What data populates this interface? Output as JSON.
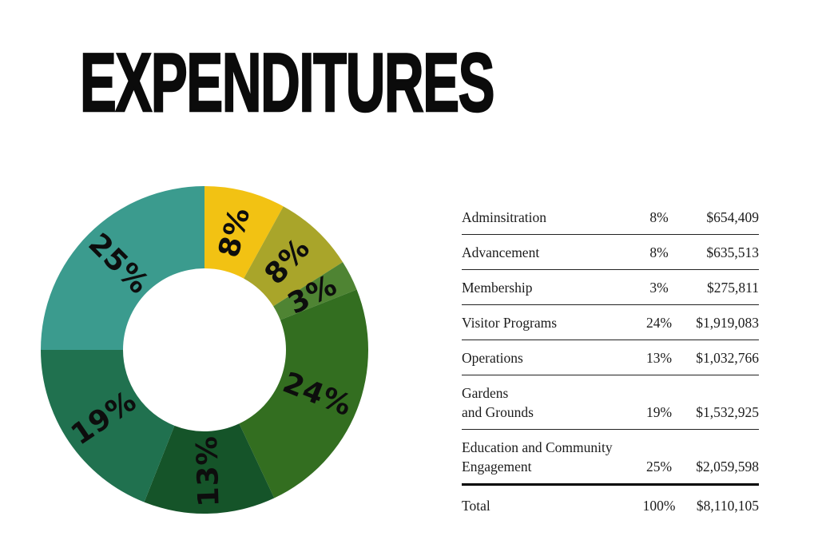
{
  "page": {
    "title": "EXPENDITURES"
  },
  "chart_data": {
    "type": "pie",
    "subtype": "donut",
    "title": "EXPENDITURES",
    "start_angle_deg": 0,
    "direction": "clockwise",
    "legend_position": "none",
    "categories": [
      "Adminsitration",
      "Advancement",
      "Membership",
      "Visitor Programs",
      "Operations",
      "Gardens and Grounds",
      "Education and Community Engagement"
    ],
    "values": [
      8,
      8,
      3,
      24,
      13,
      19,
      25
    ],
    "slice_labels": [
      "8%",
      "8%",
      "3%",
      "24%",
      "13%",
      "19%",
      "25%"
    ],
    "amounts": [
      "$654,409",
      "$635,513",
      "$275,811",
      "$1,919,083",
      "$1,032,766",
      "$1,532,925",
      "$2,059,598"
    ],
    "colors": [
      "#F2C213",
      "#A9A52A",
      "#4F8433",
      "#336E20",
      "#155429",
      "#20714F",
      "#3B9B8E"
    ],
    "total": {
      "label": "Total",
      "pct": "100%",
      "amount": "$8,110,105"
    }
  },
  "table": {
    "rows": [
      {
        "label": "Adminsitration",
        "pct": "8%",
        "amount": "$654,409"
      },
      {
        "label": "Advancement",
        "pct": "8%",
        "amount": "$635,513"
      },
      {
        "label": "Membership",
        "pct": "3%",
        "amount": "$275,811"
      },
      {
        "label": "Visitor Programs",
        "pct": "24%",
        "amount": "$1,919,083"
      },
      {
        "label": "Operations",
        "pct": "13%",
        "amount": "$1,032,766"
      },
      {
        "label": "Gardens\nand Grounds",
        "pct": "19%",
        "amount": "$1,532,925"
      },
      {
        "label": "Education and Community\nEngagement",
        "pct": "25%",
        "amount": "$2,059,598",
        "last_data_row": true
      },
      {
        "label": "Total",
        "pct": "100%",
        "amount": "$8,110,105",
        "is_total": true
      }
    ]
  }
}
